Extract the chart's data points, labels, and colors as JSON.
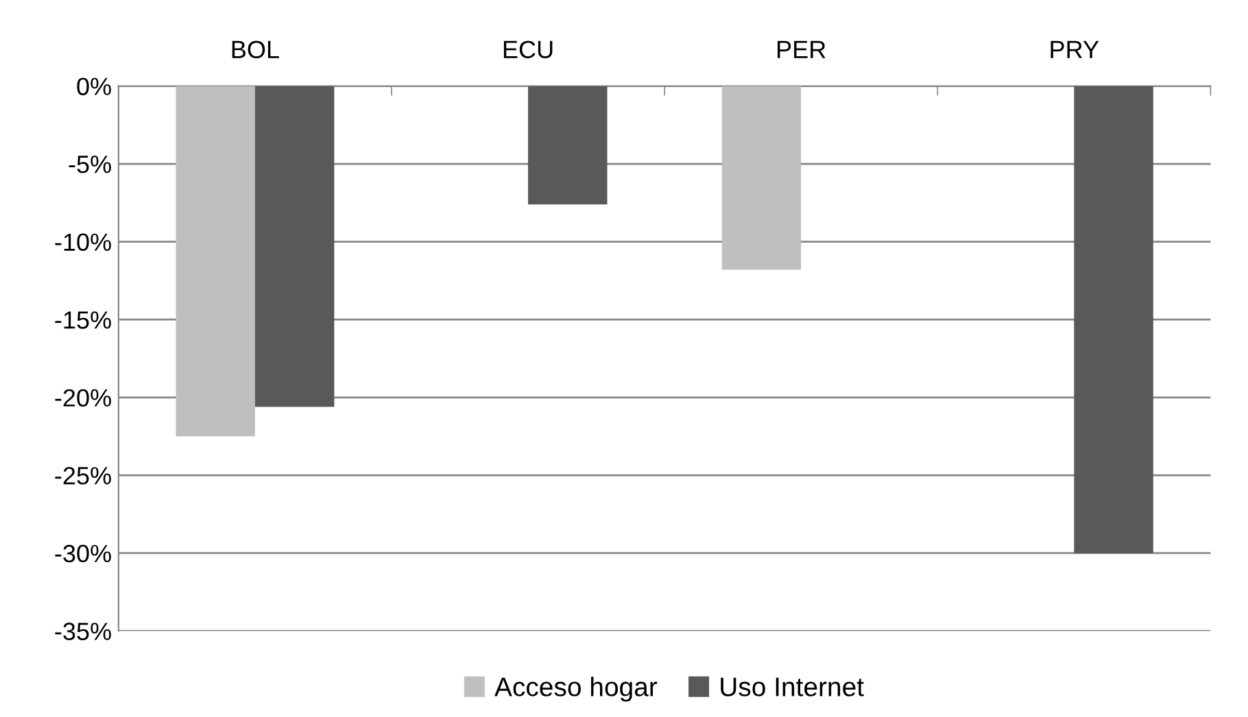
{
  "chart_data": {
    "type": "bar",
    "categories": [
      "BOL",
      "ECU",
      "PER",
      "PRY"
    ],
    "series": [
      {
        "name": "Acceso hogar",
        "color": "#bfbfbf",
        "values": [
          -22.5,
          null,
          -11.8,
          null
        ]
      },
      {
        "name": "Uso Internet",
        "color": "#595959",
        "values": [
          -20.6,
          -7.6,
          null,
          -30.0
        ]
      }
    ],
    "ylim": [
      -35,
      0
    ],
    "yticks": [
      {
        "value": 0,
        "label": "0%"
      },
      {
        "value": -5,
        "label": "-5%"
      },
      {
        "value": -10,
        "label": "-10%"
      },
      {
        "value": -15,
        "label": "-15%"
      },
      {
        "value": -20,
        "label": "-20%"
      },
      {
        "value": -25,
        "label": "-25%"
      },
      {
        "value": -30,
        "label": "-30%"
      },
      {
        "value": -35,
        "label": "-35%"
      }
    ],
    "grid": "y",
    "legend": "bottom"
  }
}
